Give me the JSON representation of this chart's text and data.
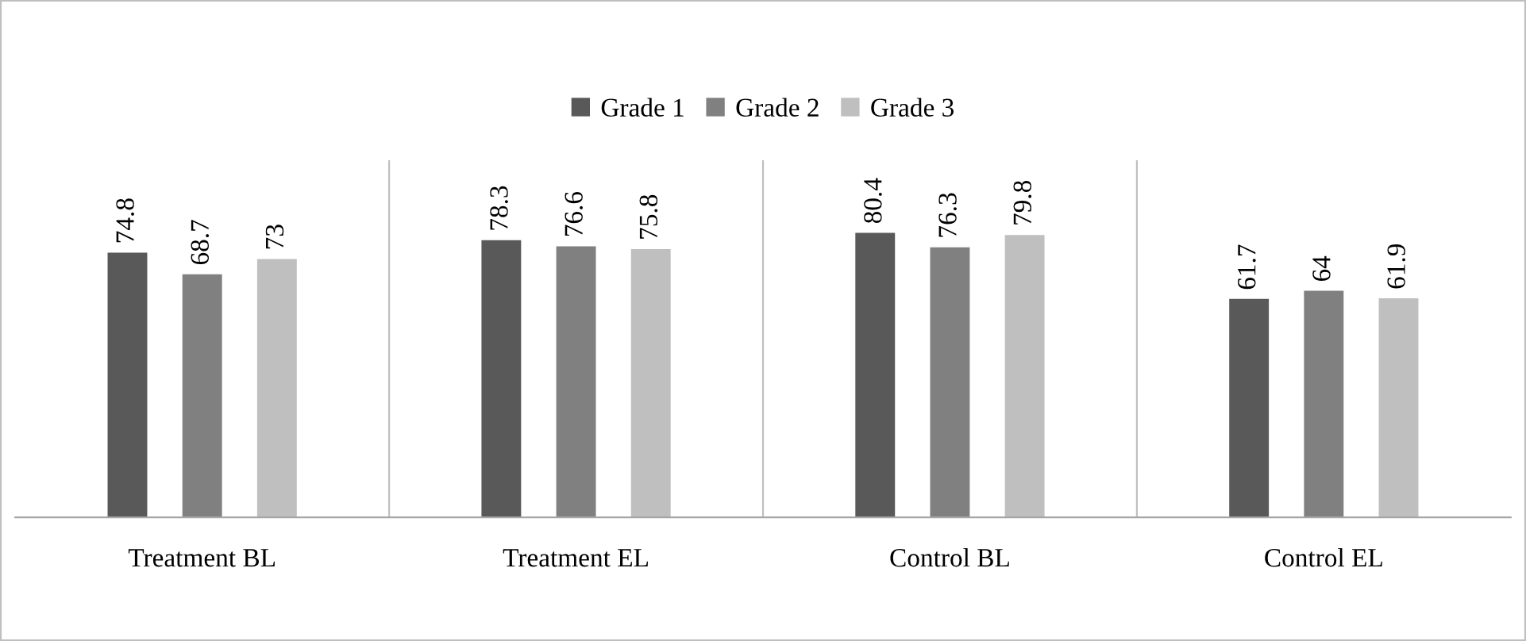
{
  "chart_data": {
    "type": "bar",
    "categories": [
      "Treatment BL",
      "Treatment EL",
      "Control BL",
      "Control EL"
    ],
    "series": [
      {
        "name": "Grade 1",
        "color": "#595959",
        "values": [
          74.8,
          78.3,
          80.4,
          61.7
        ]
      },
      {
        "name": "Grade 2",
        "color": "#808080",
        "values": [
          68.7,
          76.6,
          76.3,
          64
        ]
      },
      {
        "name": "Grade 3",
        "color": "#bfbfbf",
        "values": [
          73,
          75.8,
          79.8,
          61.9
        ]
      }
    ],
    "ylim": [
      0,
      100
    ],
    "tick_labels": "x",
    "data_labels": true,
    "legend": "top",
    "grid": false
  }
}
